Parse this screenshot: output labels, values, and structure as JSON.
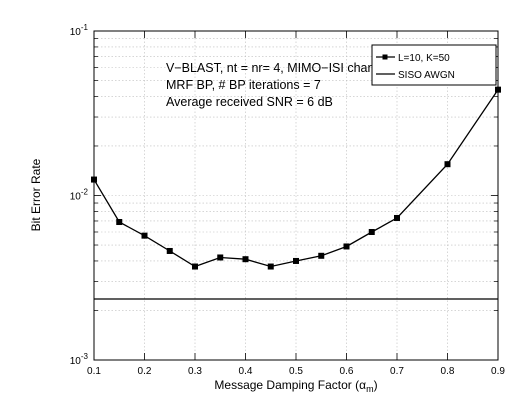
{
  "chart_data": {
    "type": "line",
    "title": "",
    "xlabel": "Message Damping Factor (α",
    "xlabel_sub": "m",
    "xlabel_close": ")",
    "ylabel": "Bit Error Rate",
    "xlim": [
      0.1,
      0.9
    ],
    "ylim": [
      0.001,
      0.1
    ],
    "yscale": "log",
    "grid": true,
    "x_ticks": [
      "0.1",
      "0.2",
      "0.3",
      "0.4",
      "0.5",
      "0.6",
      "0.7",
      "0.8",
      "0.9"
    ],
    "y_ticks": [
      {
        "base": "10",
        "exp": "-3",
        "value": 0.001
      },
      {
        "base": "10",
        "exp": "-2",
        "value": 0.01
      },
      {
        "base": "10",
        "exp": "-1",
        "value": 0.1
      }
    ],
    "annotations": [
      "V−BLAST, nt = nr= 4, MIMO−ISI channel",
      "MRF BP, # BP iterations = 7",
      "Average received SNR = 6 dB"
    ],
    "legend_position": "top-right",
    "series": [
      {
        "name": "L=10, K=50",
        "marker": "square",
        "x": [
          0.1,
          0.15,
          0.2,
          0.25,
          0.3,
          0.35,
          0.4,
          0.45,
          0.5,
          0.55,
          0.6,
          0.65,
          0.7,
          0.8,
          0.9
        ],
        "y": [
          0.0125,
          0.0069,
          0.0057,
          0.0046,
          0.0037,
          0.0042,
          0.0041,
          0.0037,
          0.004,
          0.0043,
          0.0049,
          0.006,
          0.0073,
          0.0155,
          0.044
        ]
      },
      {
        "name": "SISO AWGN",
        "marker": "none",
        "x": [
          0.1,
          0.9
        ],
        "y": [
          0.00235,
          0.00235
        ]
      }
    ]
  }
}
